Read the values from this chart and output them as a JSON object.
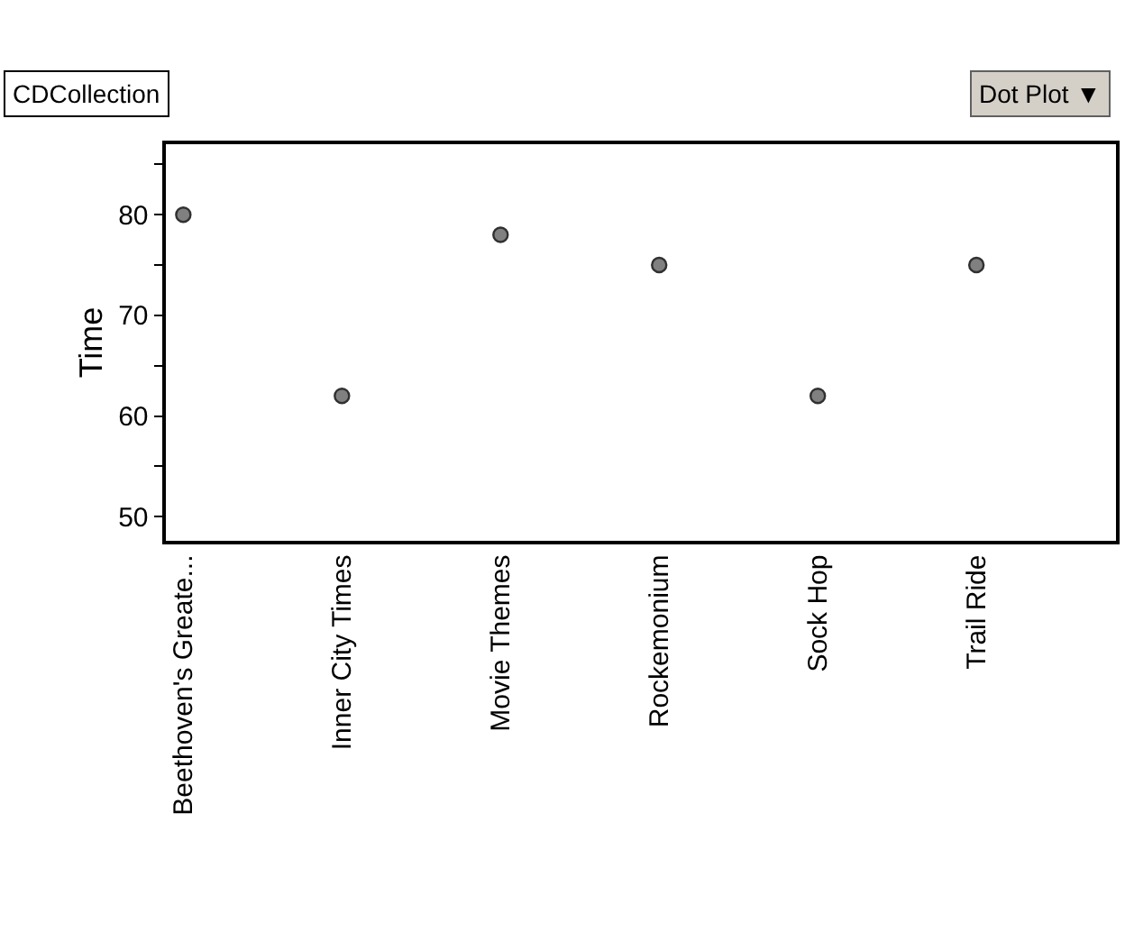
{
  "chart_data": {
    "type": "scatter",
    "title": "CDCollection",
    "ylabel": "Time",
    "categories": [
      "Beethoven's Greate...",
      "Inner City Times",
      "Movie Themes",
      "Rockemonium",
      "Sock Hop",
      "Trail Ride"
    ],
    "values": [
      80,
      62,
      78,
      75,
      62,
      75
    ],
    "color": "#808080",
    "marker": "circle",
    "ylim": [
      47.6,
      87
    ],
    "yticks": [
      50,
      {
        "value": 55,
        "label": null
      },
      60,
      {
        "value": 65,
        "label": null
      },
      70,
      {
        "value": 75,
        "label": null
      },
      80,
      {
        "value": 85,
        "label": null
      }
    ],
    "legend": false,
    "annotations": [
      "Dot Plot ▼"
    ]
  }
}
